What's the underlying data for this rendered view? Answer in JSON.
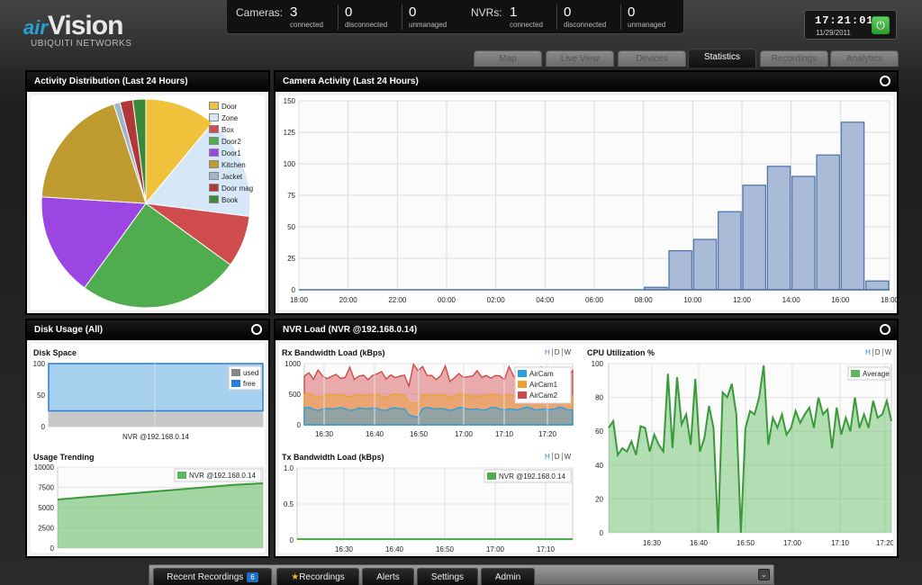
{
  "brand": {
    "air": "air",
    "vision": "Vision",
    "company": "UBIQUITI NETWORKS"
  },
  "status": {
    "cameras_label": "Cameras:",
    "cameras": [
      {
        "value": "3",
        "label": "connected"
      },
      {
        "value": "0",
        "label": "disconnected"
      },
      {
        "value": "0",
        "label": "unmanaged"
      }
    ],
    "nvrs_label": "NVRs:",
    "nvrs": [
      {
        "value": "1",
        "label": "connected"
      },
      {
        "value": "0",
        "label": "disconnected"
      },
      {
        "value": "0",
        "label": "unmanaged"
      }
    ]
  },
  "clock": {
    "time": "17:21:01",
    "date": "11/29/2011",
    "power_icon": "power-icon",
    "power_color": "#44aa44"
  },
  "tabs": [
    {
      "label": "Map",
      "active": false
    },
    {
      "label": "Live View",
      "active": false
    },
    {
      "label": "Devices",
      "active": false
    },
    {
      "label": "Statistics",
      "active": true
    },
    {
      "label": "Recordings",
      "active": false
    },
    {
      "label": "Analytics",
      "active": false
    }
  ],
  "panels": {
    "activity_distribution": {
      "title": "Activity Distribution (Last 24 Hours)"
    },
    "camera_activity": {
      "title": "Camera Activity (Last 24 Hours)"
    },
    "disk_usage": {
      "title": "Disk Usage (All)",
      "disk_space": "Disk Space",
      "usage_trending": "Usage Trending"
    },
    "nvr_load": {
      "title": "NVR Load (NVR @192.168.0.14)",
      "rx": "Rx Bandwidth Load (kBps)",
      "tx": "Tx Bandwidth Load (kBps)",
      "cpu": "CPU Utilization %"
    }
  },
  "hdw": {
    "h": "H",
    "d": "D",
    "w": "W"
  },
  "chart_data": [
    {
      "id": "activity_distribution",
      "type": "pie",
      "labels": [
        "Door",
        "Zone",
        "Box",
        "Door2",
        "Door1",
        "Kitchen",
        "Jacket",
        "Door mag",
        "Book"
      ],
      "values": [
        11,
        16,
        8,
        25,
        16,
        19,
        1,
        2,
        2
      ],
      "colors": [
        "#f0c23c",
        "#d6e8f7",
        "#cf4c4c",
        "#4fad4f",
        "#9b45e3",
        "#bf9a2e",
        "#9fb5c9",
        "#b03838",
        "#3a8a3a"
      ],
      "legend_position": "top-right"
    },
    {
      "id": "camera_activity",
      "type": "bar",
      "categories": [
        "18:00",
        "19:00",
        "20:00",
        "21:00",
        "22:00",
        "23:00",
        "00:00",
        "01:00",
        "02:00",
        "03:00",
        "04:00",
        "05:00",
        "06:00",
        "07:00",
        "08:00",
        "09:00",
        "10:00",
        "11:00",
        "12:00",
        "13:00",
        "14:00",
        "15:00",
        "16:00",
        "17:00"
      ],
      "x_ticks": [
        "18:00",
        "20:00",
        "22:00",
        "00:00",
        "02:00",
        "04:00",
        "06:00",
        "08:00",
        "10:00",
        "12:00",
        "14:00",
        "16:00",
        "18:00"
      ],
      "values": [
        0,
        0,
        0,
        0,
        0,
        0,
        0,
        0,
        0,
        0,
        0,
        0,
        0,
        0,
        2,
        31,
        40,
        62,
        83,
        98,
        90,
        107,
        133,
        7
      ],
      "ylim": [
        0,
        150
      ],
      "y_ticks": [
        0,
        25,
        50,
        75,
        100,
        125,
        150
      ],
      "color": "#a9bbd6"
    },
    {
      "id": "disk_space",
      "type": "bar",
      "categories": [
        "NVR @192.168.0.14"
      ],
      "series": [
        {
          "name": "used",
          "values": [
            25
          ],
          "color": "#c8c8c8"
        },
        {
          "name": "free",
          "values": [
            75
          ],
          "color": "#a8d1f0"
        }
      ],
      "ylim": [
        0,
        100
      ],
      "y_ticks": [
        0,
        50,
        100
      ],
      "legend_position": "top-right"
    },
    {
      "id": "usage_trending",
      "type": "area",
      "series": [
        {
          "name": "NVR @192.168.0.14",
          "values": [
            6000,
            6300,
            6600,
            6900,
            7200,
            7500,
            7800,
            8000
          ],
          "color": "#5cb85c"
        }
      ],
      "ylim": [
        0,
        10000
      ],
      "y_ticks": [
        0,
        2500,
        5000,
        7500,
        10000
      ],
      "legend_position": "top-right"
    },
    {
      "id": "rx_bandwidth",
      "type": "area",
      "x_ticks": [
        "16:30",
        "16:40",
        "16:50",
        "17:00",
        "17:10",
        "17:20"
      ],
      "series": [
        {
          "name": "AirCam",
          "color": "#2aa0e0"
        },
        {
          "name": "AirCam1",
          "color": "#f0a030"
        },
        {
          "name": "AirCam2",
          "color": "#d04848"
        }
      ],
      "ylim": [
        0,
        1000
      ],
      "y_ticks": [
        0,
        500,
        1000
      ]
    },
    {
      "id": "tx_bandwidth",
      "type": "line",
      "x_ticks": [
        "16:30",
        "16:40",
        "16:50",
        "17:00",
        "17:10"
      ],
      "series": [
        {
          "name": "NVR @192.168.0.14",
          "values": [
            0,
            0,
            0,
            0,
            0,
            0,
            0,
            0,
            0,
            0
          ],
          "color": "#4fad4f"
        }
      ],
      "ylim": [
        0,
        1
      ],
      "y_ticks": [
        "0",
        "0.5",
        "1.0"
      ]
    },
    {
      "id": "cpu_utilization",
      "type": "area",
      "x_ticks": [
        "16:30",
        "16:40",
        "16:50",
        "17:00",
        "17:10",
        "17:20"
      ],
      "series": [
        {
          "name": "Average",
          "values": [
            62,
            66,
            46,
            50,
            48,
            54,
            46,
            63,
            62,
            48,
            58,
            52,
            48,
            94,
            50,
            92,
            64,
            70,
            52,
            91,
            48,
            56,
            75,
            62,
            0,
            83,
            80,
            88,
            70,
            0,
            62,
            72,
            70,
            80,
            99,
            52,
            68,
            62,
            70,
            58,
            62,
            72,
            65,
            70,
            74,
            62,
            80,
            70,
            73,
            50,
            74,
            58,
            68,
            60,
            80,
            62,
            70,
            62,
            78,
            68,
            70,
            78,
            66
          ],
          "color": "#5cb85c"
        }
      ],
      "ylim": [
        0,
        100
      ],
      "y_ticks": [
        0,
        20,
        40,
        60,
        80,
        100
      ]
    }
  ],
  "bottom_bar": {
    "recent_recordings": "Recent Recordings",
    "recent_count": "6",
    "recordings": "Recordings",
    "alerts": "Alerts",
    "settings": "Settings",
    "admin": "Admin",
    "collapse_icon": "chevron-down-icon"
  }
}
